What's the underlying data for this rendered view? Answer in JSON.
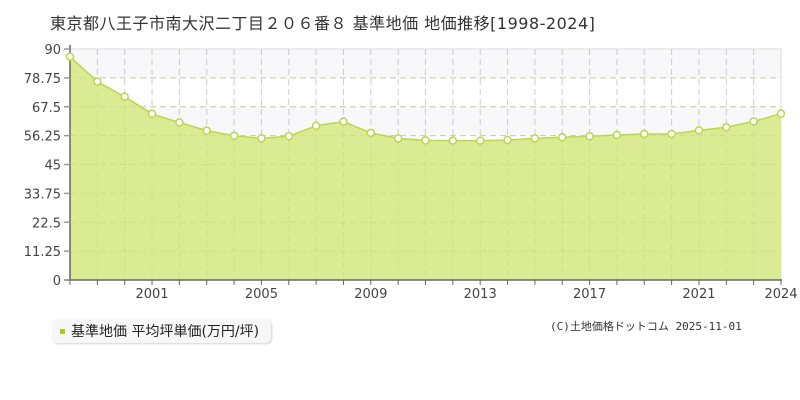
{
  "title": "東京都八王子市南大沢二丁目２０６番８ 基準地価 地価推移[1998-2024]",
  "legend": {
    "label": "基準地価 平均坪単価(万円/坪)",
    "color": "#aacc22"
  },
  "credit": "(C)土地価格ドットコム 2025-11-01",
  "colors": {
    "fill": "#dbeb93",
    "line": "#b9d84a",
    "marker_stroke": "#b9d84a",
    "marker_fill": "#ffffff",
    "band": "#f8f7f9",
    "grid": "#cccccc",
    "axis": "#666666"
  },
  "chart_data": {
    "type": "area",
    "title": "東京都八王子市南大沢二丁目２０６番８ 基準地価 地価推移[1998-2024]",
    "xlabel": "",
    "ylabel": "",
    "ylim": [
      0,
      90
    ],
    "yticks": [
      0,
      11.25,
      22.5,
      33.75,
      45,
      56.25,
      67.5,
      78.75,
      90
    ],
    "ytick_labels": [
      "0",
      "11.25",
      "22.5",
      "33.75",
      "45",
      "56.25",
      "67.5",
      "78.75",
      "90"
    ],
    "xtick_labels": [
      "2001",
      "2005",
      "2009",
      "2013",
      "2017",
      "2021",
      "2024"
    ],
    "grid": true,
    "legend_position": "bottom-left",
    "series": [
      {
        "name": "基準地価 平均坪単価(万円/坪)",
        "x": [
          1998,
          1999,
          2000,
          2001,
          2002,
          2003,
          2004,
          2005,
          2006,
          2007,
          2008,
          2009,
          2010,
          2011,
          2012,
          2013,
          2014,
          2015,
          2016,
          2017,
          2018,
          2019,
          2020,
          2021,
          2022,
          2023,
          2024
        ],
        "values": [
          87.0,
          77.3,
          71.4,
          64.7,
          61.4,
          58.2,
          56.2,
          55.2,
          56.0,
          60.1,
          61.7,
          57.3,
          55.2,
          54.4,
          54.3,
          54.3,
          54.5,
          55.2,
          55.6,
          56.0,
          56.5,
          56.9,
          56.9,
          58.3,
          59.5,
          61.8,
          64.8
        ]
      }
    ]
  }
}
